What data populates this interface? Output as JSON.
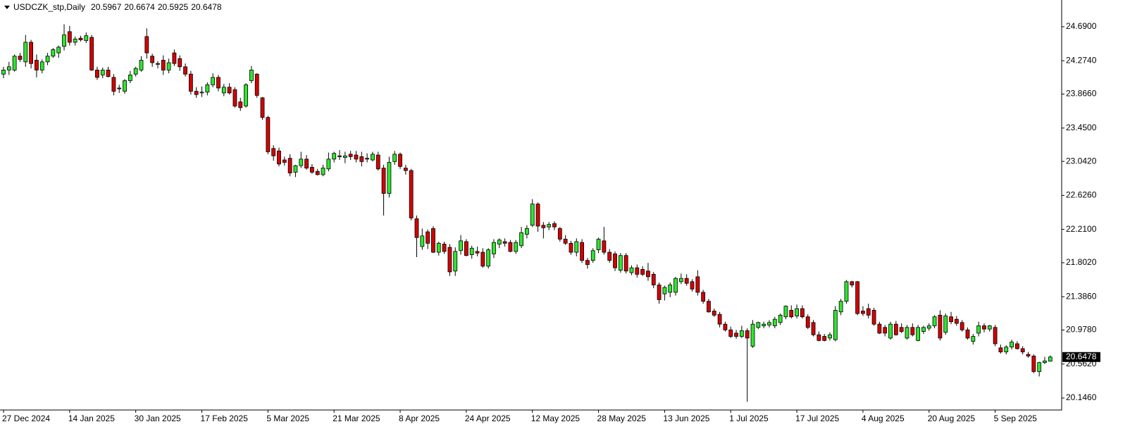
{
  "chart_data": {
    "type": "candlestick",
    "title": "USDCZK_stp,Daily",
    "up_color": "#2ee62e",
    "down_color": "#d40000",
    "grid": false,
    "ylim": [
      20.008,
      25.0
    ],
    "yticks": [
      {
        "value": 24.69,
        "label": "24.6900"
      },
      {
        "value": 24.274,
        "label": "24.2740"
      },
      {
        "value": 23.866,
        "label": "23.8660"
      },
      {
        "value": 23.45,
        "label": "23.4500"
      },
      {
        "value": 23.042,
        "label": "23.0420"
      },
      {
        "value": 22.626,
        "label": "22.6260"
      },
      {
        "value": 22.21,
        "label": "22.2100"
      },
      {
        "value": 21.802,
        "label": "21.8020"
      },
      {
        "value": 21.386,
        "label": "21.3860"
      },
      {
        "value": 20.978,
        "label": "20.9780"
      },
      {
        "value": 20.562,
        "label": "20.5620"
      },
      {
        "value": 20.146,
        "label": "20.1460"
      }
    ],
    "categories": [
      "27 Dec 2024",
      null,
      null,
      null,
      null,
      null,
      null,
      null,
      null,
      null,
      null,
      null,
      "14 Jan 2025",
      null,
      null,
      null,
      null,
      null,
      null,
      null,
      null,
      null,
      null,
      null,
      "30 Jan 2025",
      null,
      null,
      null,
      null,
      null,
      null,
      null,
      null,
      null,
      null,
      null,
      "17 Feb 2025",
      null,
      null,
      null,
      null,
      null,
      null,
      null,
      null,
      null,
      null,
      null,
      "5 Mar 2025",
      null,
      null,
      null,
      null,
      null,
      null,
      null,
      null,
      null,
      null,
      null,
      "21 Mar 2025",
      null,
      null,
      null,
      null,
      null,
      null,
      null,
      null,
      null,
      null,
      null,
      "8 Apr 2025",
      null,
      null,
      null,
      null,
      null,
      null,
      null,
      null,
      null,
      null,
      null,
      "24 Apr 2025",
      null,
      null,
      null,
      null,
      null,
      null,
      null,
      null,
      null,
      null,
      null,
      "12 May 2025",
      null,
      null,
      null,
      null,
      null,
      null,
      null,
      null,
      null,
      null,
      null,
      "28 May 2025",
      null,
      null,
      null,
      null,
      null,
      null,
      null,
      null,
      null,
      null,
      null,
      "13 Jun 2025",
      null,
      null,
      null,
      null,
      null,
      null,
      null,
      null,
      null,
      null,
      null,
      "1 Jul 2025",
      null,
      null,
      null,
      null,
      null,
      null,
      null,
      null,
      null,
      null,
      null,
      "17 Jul 2025",
      null,
      null,
      null,
      null,
      null,
      null,
      null,
      null,
      null,
      null,
      null,
      "4 Aug 2025",
      null,
      null,
      null,
      null,
      null,
      null,
      null,
      null,
      null,
      null,
      null,
      "20 Aug 2025",
      null,
      null,
      null,
      null,
      null,
      null,
      null,
      null,
      null,
      null,
      null,
      "5 Sep 2025",
      null,
      null,
      null,
      null,
      null,
      null,
      null,
      null,
      null,
      null
    ],
    "ohlc": [
      [
        24.11,
        24.2,
        24.06,
        24.16
      ],
      [
        24.16,
        24.26,
        24.1,
        24.2
      ],
      [
        24.16,
        24.35,
        24.14,
        24.33
      ],
      [
        24.33,
        24.37,
        24.26,
        24.29
      ],
      [
        24.26,
        24.59,
        24.2,
        24.5
      ],
      [
        24.5,
        24.53,
        24.18,
        24.24
      ],
      [
        24.28,
        24.35,
        24.07,
        24.16
      ],
      [
        24.16,
        24.29,
        24.12,
        24.26
      ],
      [
        24.26,
        24.37,
        24.22,
        24.33
      ],
      [
        24.33,
        24.43,
        24.31,
        24.41
      ],
      [
        24.37,
        24.46,
        24.31,
        24.44
      ],
      [
        24.45,
        24.72,
        24.4,
        24.59
      ],
      [
        24.63,
        24.7,
        24.46,
        24.5
      ],
      [
        24.5,
        24.57,
        24.46,
        24.54
      ],
      [
        24.55,
        24.58,
        24.51,
        24.53
      ],
      [
        24.52,
        24.62,
        24.49,
        24.58
      ],
      [
        24.56,
        24.59,
        24.15,
        24.16
      ],
      [
        24.16,
        24.2,
        24.04,
        24.07
      ],
      [
        24.1,
        24.19,
        24.06,
        24.16
      ],
      [
        24.16,
        24.2,
        24.07,
        24.08
      ],
      [
        24.07,
        24.11,
        23.85,
        23.9
      ],
      [
        23.94,
        23.98,
        23.88,
        23.93
      ],
      [
        23.9,
        24.05,
        23.87,
        24.03
      ],
      [
        24.03,
        24.15,
        24.0,
        24.1
      ],
      [
        24.11,
        24.2,
        24.08,
        24.18
      ],
      [
        24.16,
        24.33,
        24.14,
        24.28
      ],
      [
        24.57,
        24.67,
        24.3,
        24.37
      ],
      [
        24.33,
        24.36,
        24.2,
        24.25
      ],
      [
        24.24,
        24.27,
        24.18,
        24.23
      ],
      [
        24.28,
        24.34,
        24.1,
        24.16
      ],
      [
        24.16,
        24.3,
        24.12,
        24.25
      ],
      [
        24.37,
        24.41,
        24.21,
        24.24
      ],
      [
        24.3,
        24.34,
        24.15,
        24.2
      ],
      [
        24.2,
        24.24,
        24.08,
        24.11
      ],
      [
        24.11,
        24.15,
        23.86,
        23.9
      ],
      [
        23.9,
        23.95,
        23.82,
        23.86
      ],
      [
        23.88,
        23.96,
        23.83,
        23.89
      ],
      [
        23.89,
        24.01,
        23.85,
        23.98
      ],
      [
        23.98,
        24.12,
        23.95,
        24.07
      ],
      [
        24.07,
        24.1,
        23.9,
        23.94
      ],
      [
        23.88,
        23.99,
        23.84,
        23.95
      ],
      [
        23.95,
        24.0,
        23.86,
        23.88
      ],
      [
        23.92,
        23.95,
        23.7,
        23.72
      ],
      [
        23.77,
        23.82,
        23.66,
        23.7
      ],
      [
        23.72,
        24.0,
        23.7,
        23.98
      ],
      [
        24.03,
        24.21,
        24.0,
        24.16
      ],
      [
        24.11,
        24.12,
        23.82,
        23.85
      ],
      [
        23.82,
        23.83,
        23.55,
        23.58
      ],
      [
        23.58,
        23.6,
        23.13,
        23.16
      ],
      [
        23.2,
        23.24,
        23.05,
        23.11
      ],
      [
        23.17,
        23.21,
        22.98,
        23.01
      ],
      [
        23.06,
        23.1,
        22.99,
        23.03
      ],
      [
        23.08,
        23.13,
        22.86,
        22.9
      ],
      [
        22.91,
        23.0,
        22.85,
        22.99
      ],
      [
        22.99,
        23.16,
        22.96,
        23.07
      ],
      [
        23.07,
        23.12,
        22.94,
        22.96
      ],
      [
        22.97,
        23.01,
        22.89,
        22.91
      ],
      [
        22.92,
        22.95,
        22.87,
        22.88
      ],
      [
        22.88,
        23.0,
        22.86,
        22.96
      ],
      [
        22.95,
        23.15,
        22.92,
        23.07
      ],
      [
        23.07,
        23.16,
        23.03,
        23.14
      ],
      [
        23.11,
        23.18,
        23.06,
        23.1
      ],
      [
        23.09,
        23.16,
        23.02,
        23.11
      ],
      [
        23.13,
        23.17,
        23.06,
        23.1
      ],
      [
        23.12,
        23.17,
        23.03,
        23.07
      ],
      [
        23.1,
        23.16,
        22.98,
        23.04
      ],
      [
        23.08,
        23.14,
        23.03,
        23.07
      ],
      [
        23.06,
        23.16,
        23.04,
        23.13
      ],
      [
        23.12,
        23.16,
        22.93,
        22.95
      ],
      [
        22.96,
        23.0,
        22.38,
        22.65
      ],
      [
        22.65,
        23.1,
        22.6,
        23.03
      ],
      [
        23.04,
        23.17,
        23.0,
        23.13
      ],
      [
        23.13,
        23.15,
        22.95,
        22.98
      ],
      [
        22.96,
        23.0,
        22.88,
        22.93
      ],
      [
        22.93,
        22.95,
        22.32,
        22.35
      ],
      [
        22.34,
        22.38,
        21.87,
        22.11
      ],
      [
        22.0,
        22.22,
        21.96,
        22.13
      ],
      [
        22.18,
        22.21,
        21.97,
        22.04
      ],
      [
        22.22,
        22.25,
        21.92,
        21.93
      ],
      [
        21.93,
        22.06,
        21.89,
        22.04
      ],
      [
        22.03,
        22.06,
        21.91,
        21.94
      ],
      [
        21.99,
        22.03,
        21.64,
        21.69
      ],
      [
        21.7,
        21.99,
        21.64,
        21.94
      ],
      [
        21.95,
        22.14,
        21.9,
        22.07
      ],
      [
        22.06,
        22.09,
        21.88,
        21.89
      ],
      [
        21.9,
        22.01,
        21.85,
        21.98
      ],
      [
        21.94,
        22.0,
        21.88,
        21.92
      ],
      [
        21.93,
        21.98,
        21.74,
        21.76
      ],
      [
        21.76,
        21.98,
        21.73,
        21.96
      ],
      [
        21.91,
        22.09,
        21.86,
        22.05
      ],
      [
        22.03,
        22.1,
        21.98,
        22.08
      ],
      [
        22.06,
        22.1,
        22.0,
        22.04
      ],
      [
        22.05,
        22.08,
        21.93,
        21.94
      ],
      [
        21.94,
        22.08,
        21.91,
        22.05
      ],
      [
        22.01,
        22.24,
        21.98,
        22.17
      ],
      [
        22.15,
        22.26,
        22.1,
        22.22
      ],
      [
        22.26,
        22.58,
        22.24,
        22.52
      ],
      [
        22.52,
        22.54,
        22.18,
        22.25
      ],
      [
        22.26,
        22.3,
        22.1,
        22.23
      ],
      [
        22.24,
        22.3,
        22.2,
        22.27
      ],
      [
        22.28,
        22.31,
        22.2,
        22.24
      ],
      [
        22.22,
        22.24,
        22.06,
        22.09
      ],
      [
        22.09,
        22.14,
        22.02,
        22.04
      ],
      [
        22.04,
        22.07,
        21.9,
        21.93
      ],
      [
        21.93,
        22.1,
        21.88,
        22.06
      ],
      [
        22.05,
        22.09,
        21.8,
        21.83
      ],
      [
        21.83,
        21.86,
        21.73,
        21.78
      ],
      [
        21.83,
        21.98,
        21.8,
        21.95
      ],
      [
        21.96,
        22.11,
        21.92,
        22.09
      ],
      [
        22.07,
        22.24,
        21.9,
        21.93
      ],
      [
        21.93,
        21.97,
        21.8,
        21.83
      ],
      [
        21.91,
        21.94,
        21.7,
        21.74
      ],
      [
        21.71,
        21.92,
        21.68,
        21.89
      ],
      [
        21.89,
        21.92,
        21.67,
        21.7
      ],
      [
        21.68,
        21.77,
        21.65,
        21.74
      ],
      [
        21.74,
        21.78,
        21.62,
        21.66
      ],
      [
        21.72,
        21.76,
        21.64,
        21.66
      ],
      [
        21.7,
        21.8,
        21.58,
        21.63
      ],
      [
        21.66,
        21.69,
        21.49,
        21.53
      ],
      [
        21.53,
        21.56,
        21.3,
        21.35
      ],
      [
        21.42,
        21.52,
        21.34,
        21.5
      ],
      [
        21.44,
        21.56,
        21.38,
        21.53
      ],
      [
        21.44,
        21.63,
        21.4,
        21.61
      ],
      [
        21.57,
        21.67,
        21.54,
        21.61
      ],
      [
        21.61,
        21.66,
        21.52,
        21.55
      ],
      [
        21.57,
        21.6,
        21.45,
        21.48
      ],
      [
        21.63,
        21.71,
        21.4,
        21.44
      ],
      [
        21.44,
        21.47,
        21.3,
        21.33
      ],
      [
        21.33,
        21.36,
        21.19,
        21.2
      ],
      [
        21.21,
        21.24,
        21.14,
        21.16
      ],
      [
        21.17,
        21.2,
        21.01,
        21.05
      ],
      [
        21.05,
        21.08,
        20.96,
        20.98
      ],
      [
        20.98,
        21.02,
        20.88,
        20.9
      ],
      [
        20.94,
        20.98,
        20.87,
        20.9
      ],
      [
        20.9,
        21.03,
        20.88,
        20.97
      ],
      [
        20.97,
        21.0,
        20.1,
        20.88
      ],
      [
        20.78,
        21.1,
        20.76,
        21.05
      ],
      [
        21.01,
        21.08,
        20.99,
        21.07
      ],
      [
        21.03,
        21.08,
        21.0,
        21.05
      ],
      [
        21.04,
        21.1,
        21.01,
        21.07
      ],
      [
        21.03,
        21.14,
        21.0,
        21.11
      ],
      [
        21.07,
        21.18,
        21.04,
        21.16
      ],
      [
        21.14,
        21.28,
        21.11,
        21.27
      ],
      [
        21.22,
        21.28,
        21.12,
        21.14
      ],
      [
        21.15,
        21.29,
        21.12,
        21.24
      ],
      [
        21.24,
        21.28,
        21.12,
        21.14
      ],
      [
        21.14,
        21.17,
        20.99,
        21.01
      ],
      [
        21.07,
        21.1,
        20.9,
        20.92
      ],
      [
        20.92,
        20.96,
        20.84,
        20.85
      ],
      [
        20.9,
        20.93,
        20.84,
        20.85
      ],
      [
        20.88,
        20.95,
        20.85,
        20.92
      ],
      [
        20.86,
        21.27,
        20.84,
        21.22
      ],
      [
        21.2,
        21.36,
        21.16,
        21.33
      ],
      [
        21.33,
        21.59,
        21.3,
        21.57
      ],
      [
        21.57,
        21.58,
        21.5,
        21.53
      ],
      [
        21.57,
        21.58,
        21.16,
        21.18
      ],
      [
        21.21,
        21.27,
        21.15,
        21.18
      ],
      [
        21.24,
        21.3,
        21.12,
        21.16
      ],
      [
        21.22,
        21.25,
        21.03,
        21.05
      ],
      [
        21.05,
        21.08,
        20.93,
        20.94
      ],
      [
        21.01,
        21.04,
        20.9,
        20.94
      ],
      [
        20.88,
        21.08,
        20.86,
        21.05
      ],
      [
        21.05,
        21.09,
        20.91,
        20.92
      ],
      [
        21.01,
        21.06,
        20.94,
        20.96
      ],
      [
        20.88,
        21.04,
        20.86,
        21.01
      ],
      [
        21.01,
        21.06,
        20.9,
        20.92
      ],
      [
        20.85,
        21.04,
        20.84,
        21.01
      ],
      [
        20.96,
        21.03,
        20.93,
        21.01
      ],
      [
        21.0,
        21.06,
        20.97,
        21.03
      ],
      [
        21.03,
        21.16,
        21.0,
        21.14
      ],
      [
        21.16,
        21.22,
        20.85,
        20.88
      ],
      [
        20.95,
        21.18,
        20.92,
        21.15
      ],
      [
        21.14,
        21.2,
        21.05,
        21.08
      ],
      [
        21.11,
        21.15,
        21.03,
        21.06
      ],
      [
        21.07,
        21.1,
        20.96,
        20.98
      ],
      [
        20.98,
        21.01,
        20.86,
        20.88
      ],
      [
        20.84,
        20.93,
        20.8,
        20.9
      ],
      [
        20.94,
        21.08,
        20.9,
        21.03
      ],
      [
        21.03,
        21.06,
        20.95,
        20.99
      ],
      [
        20.99,
        21.04,
        20.96,
        21.03
      ],
      [
        21.01,
        21.04,
        20.78,
        20.81
      ],
      [
        20.76,
        20.8,
        20.69,
        20.71
      ],
      [
        20.71,
        20.79,
        20.68,
        20.77
      ],
      [
        20.77,
        20.86,
        20.74,
        20.83
      ],
      [
        20.81,
        20.84,
        20.74,
        20.75
      ],
      [
        20.75,
        20.78,
        20.68,
        20.71
      ],
      [
        20.68,
        20.71,
        20.64,
        20.66
      ],
      [
        20.66,
        20.68,
        20.45,
        20.47
      ],
      [
        20.47,
        20.59,
        20.41,
        20.58
      ],
      [
        20.58,
        20.65,
        20.56,
        20.6
      ],
      [
        20.5967,
        20.6674,
        20.5925,
        20.6478
      ]
    ]
  }
}
